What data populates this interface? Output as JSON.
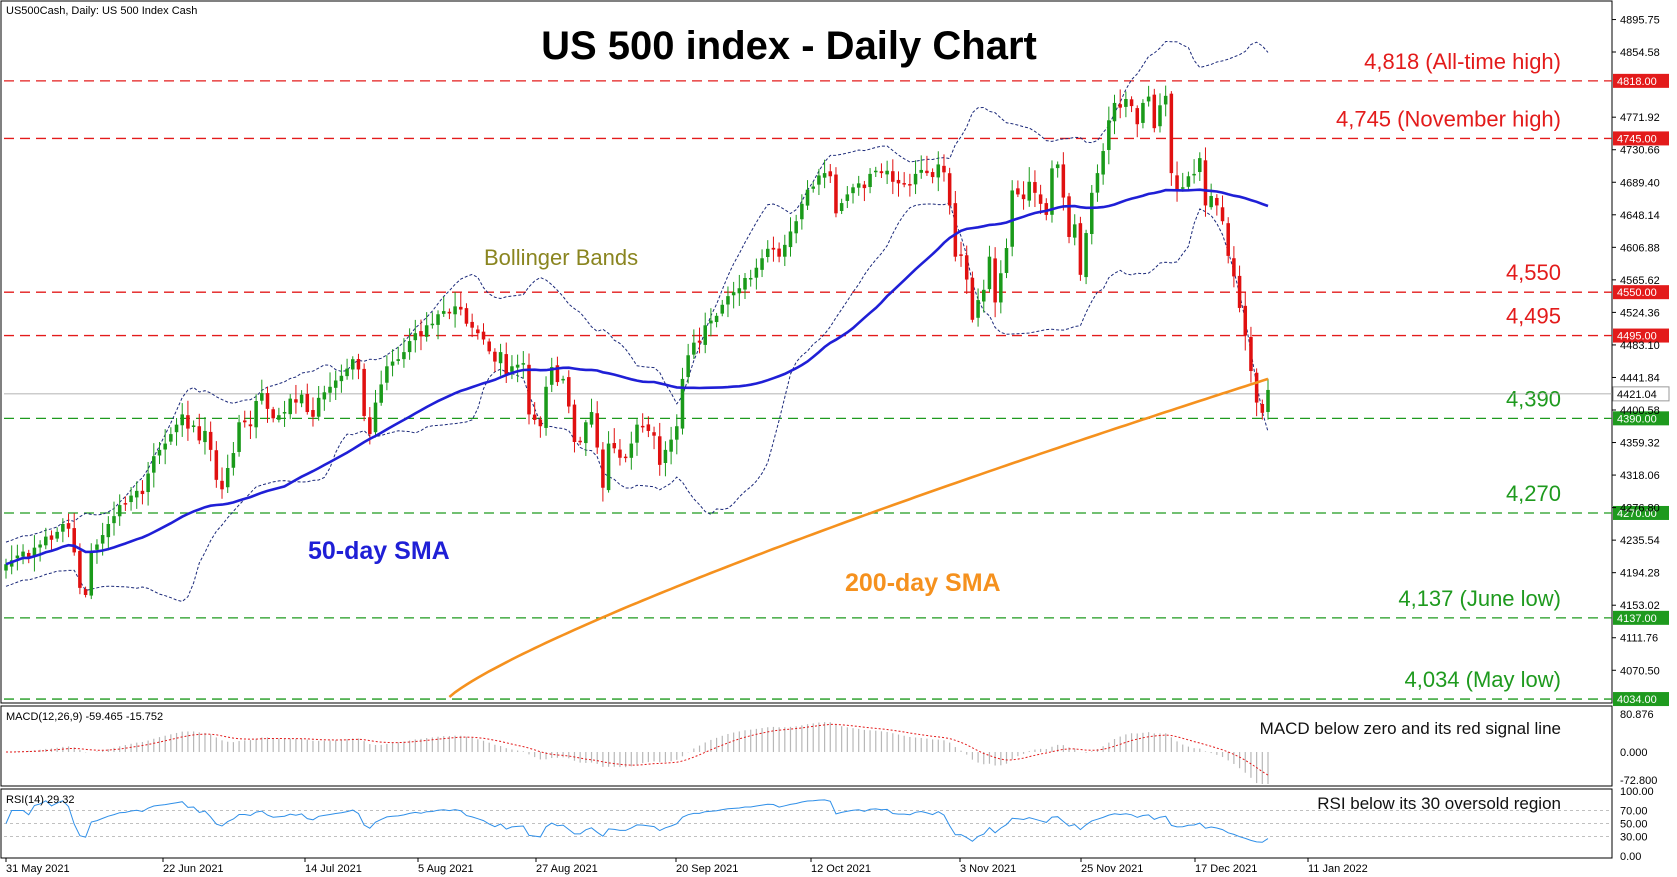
{
  "header": {
    "symbol_info": "US500Cash, Daily:  US 500 Index Cash"
  },
  "title": "US 500 index - Daily Chart",
  "colors": {
    "background": "#ffffff",
    "bull_candle": "#1a9a1a",
    "bear_candle": "#e01010",
    "resistance": "#e31b1b",
    "support": "#1e9a1e",
    "sma50": "#1f1fd6",
    "sma200": "#f5911e",
    "bollinger": "#1c2a7a",
    "label_bg_red": "#e31b1b",
    "label_bg_green": "#1e9a1e"
  },
  "annotations": {
    "bollinger": "Bollinger Bands",
    "sma50": "50-day SMA",
    "sma200": "200-day SMA",
    "macd_note": "MACD below zero and its red signal line",
    "rsi_note": "RSI below its 30 oversold region"
  },
  "macd_header": "MACD(12,26,9) -59.465 -15.752",
  "rsi_header": "RSI(14) 29.32",
  "chart_data": {
    "type": "candlestick",
    "title": "US 500 index - Daily Chart",
    "x_labels": [
      "31 May 2021",
      "22 Jun 2021",
      "14 Jul 2021",
      "5 Aug 2021",
      "27 Aug 2021",
      "20 Sep 2021",
      "12 Oct 2021",
      "3 Nov 2021",
      "25 Nov 2021",
      "17 Dec 2021",
      "11 Jan 2022"
    ],
    "y_ticks": [
      "4895.75",
      "4854.58",
      "4771.92",
      "4730.66",
      "4689.40",
      "4648.14",
      "4606.88",
      "4565.62",
      "4524.36",
      "4483.10",
      "4441.84",
      "4400.58",
      "4359.32",
      "4318.06",
      "4276.80",
      "4235.54",
      "4194.28",
      "4153.02",
      "4111.76",
      "4070.50"
    ],
    "ylim": [
      4029,
      4918
    ],
    "current_price": "4421.04",
    "levels": [
      {
        "value": 4818,
        "tag": "4818.00",
        "label": "4,818 (All-time high)",
        "kind": "resistance"
      },
      {
        "value": 4745,
        "tag": "4745.00",
        "label": "4,745 (November high)",
        "kind": "resistance"
      },
      {
        "value": 4550,
        "tag": "4550.00",
        "label": "4,550",
        "kind": "resistance"
      },
      {
        "value": 4495,
        "tag": "4495.00",
        "label": "4,495",
        "kind": "resistance"
      },
      {
        "value": 4390,
        "tag": "4390.00",
        "label": "4,390",
        "kind": "support"
      },
      {
        "value": 4270,
        "tag": "4270.00",
        "label": "4,270",
        "kind": "support"
      },
      {
        "value": 4137,
        "tag": "4137.00",
        "label": "4,137 (June low)",
        "kind": "support"
      },
      {
        "value": 4034,
        "tag": "4034.00",
        "label": "4,034 (May low)",
        "kind": "support"
      }
    ],
    "closes": [
      4205,
      4210,
      4216,
      4221,
      4213,
      4226,
      4230,
      4240,
      4236,
      4246,
      4256,
      4250,
      4220,
      4175,
      4166,
      4222,
      4230,
      4242,
      4256,
      4266,
      4280,
      4282,
      4292,
      4298,
      4294,
      4320,
      4342,
      4350,
      4358,
      4370,
      4382,
      4395,
      4377,
      4381,
      4362,
      4374,
      4350,
      4312,
      4300,
      4327,
      4346,
      4385,
      4385,
      4380,
      4412,
      4422,
      4402,
      4390,
      4394,
      4398,
      4415,
      4410,
      4420,
      4398,
      4392,
      4416,
      4423,
      4430,
      4438,
      4444,
      4453,
      4465,
      4452,
      4393,
      4370,
      4410,
      4433,
      4456,
      4462,
      4465,
      4474,
      4488,
      4498,
      4494,
      4508,
      4510,
      4522,
      4526,
      4523,
      4532,
      4528,
      4510,
      4505,
      4498,
      4490,
      4475,
      4462,
      4474,
      4446,
      4456,
      4458,
      4460,
      4395,
      4388,
      4380,
      4430,
      4455,
      4436,
      4440,
      4405,
      4360,
      4360,
      4385,
      4398,
      4353,
      4302,
      4358,
      4352,
      4340,
      4340,
      4358,
      4382,
      4380,
      4374,
      4368,
      4331,
      4350,
      4363,
      4380,
      4440,
      4470,
      4486,
      4486,
      4508,
      4514,
      4520,
      4534,
      4545,
      4550,
      4555,
      4568,
      4568,
      4581,
      4593,
      4605,
      4604,
      4595,
      4610,
      4627,
      4640,
      4662,
      4680,
      4684,
      4698,
      4701,
      4697,
      4650,
      4663,
      4674,
      4683,
      4688,
      4682,
      4700,
      4704,
      4701,
      4704,
      4690,
      4688,
      4688,
      4686,
      4700,
      4705,
      4701,
      4696,
      4712,
      4702,
      4660,
      4595,
      4596,
      4566,
      4515,
      4540,
      4553,
      4595,
      4537,
      4574,
      4606,
      4679,
      4674,
      4668,
      4690,
      4676,
      4662,
      4648,
      4707,
      4712,
      4670,
      4620,
      4636,
      4572,
      4625,
      4676,
      4701,
      4729,
      4768,
      4790,
      4784,
      4795,
      4786,
      4763,
      4790,
      4798,
      4758,
      4787,
      4799,
      4701,
      4680,
      4683,
      4697,
      4700,
      4720,
      4660,
      4672,
      4660,
      4640,
      4596,
      4570,
      4530,
      4495,
      4450,
      4410,
      4397,
      4426
    ]
  }
}
